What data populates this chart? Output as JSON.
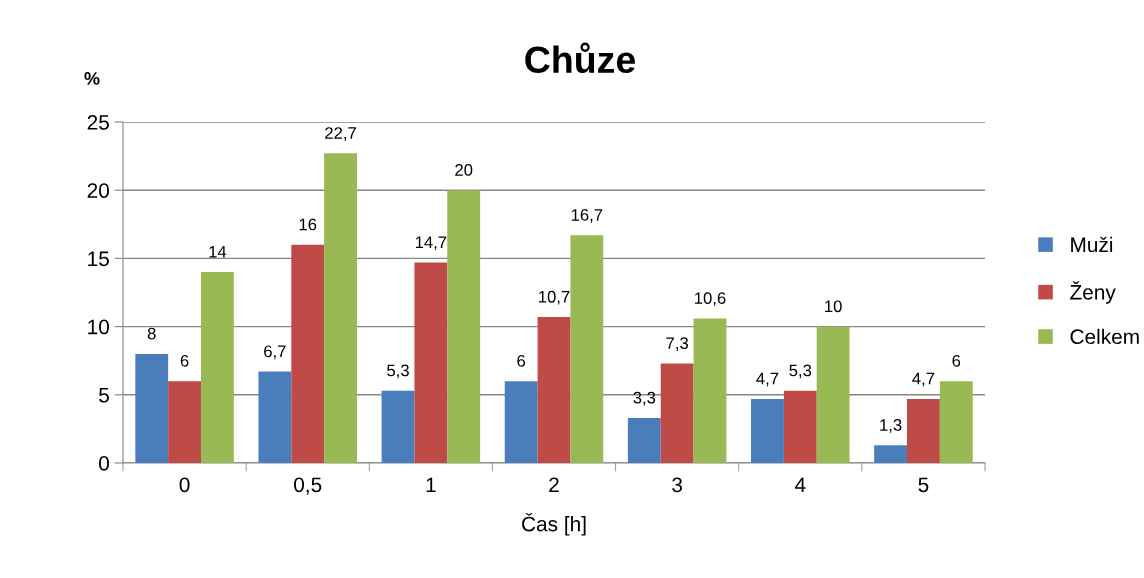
{
  "chart_data": {
    "type": "bar",
    "title": "Chůze",
    "ylabel": "%",
    "xlabel": "Čas [h]",
    "categories": [
      "0",
      "0,5",
      "1",
      "2",
      "3",
      "4",
      "5"
    ],
    "series": [
      {
        "name": "Muži",
        "color": "#4a7ebb",
        "values": [
          8,
          6.7,
          5.3,
          6,
          3.3,
          4.7,
          1.3
        ],
        "value_labels": [
          "8",
          "6,7",
          "5,3",
          "6",
          "3,3",
          "4,7",
          "1,3"
        ]
      },
      {
        "name": "Ženy",
        "color": "#be4b48",
        "values": [
          6,
          16,
          14.7,
          10.7,
          7.3,
          5.3,
          4.7
        ],
        "value_labels": [
          "6",
          "16",
          "14,7",
          "10,7",
          "7,3",
          "5,3",
          "4,7"
        ]
      },
      {
        "name": "Celkem",
        "color": "#98b954",
        "values": [
          14,
          22.7,
          20,
          16.7,
          10.6,
          10,
          6
        ],
        "value_labels": [
          "14",
          "22,7",
          "20",
          "16,7",
          "10,6",
          "10",
          "6"
        ]
      }
    ],
    "ylim": [
      0,
      25
    ],
    "yticks": [
      0,
      5,
      10,
      15,
      20,
      25
    ],
    "grid": "y",
    "legend": "right"
  }
}
